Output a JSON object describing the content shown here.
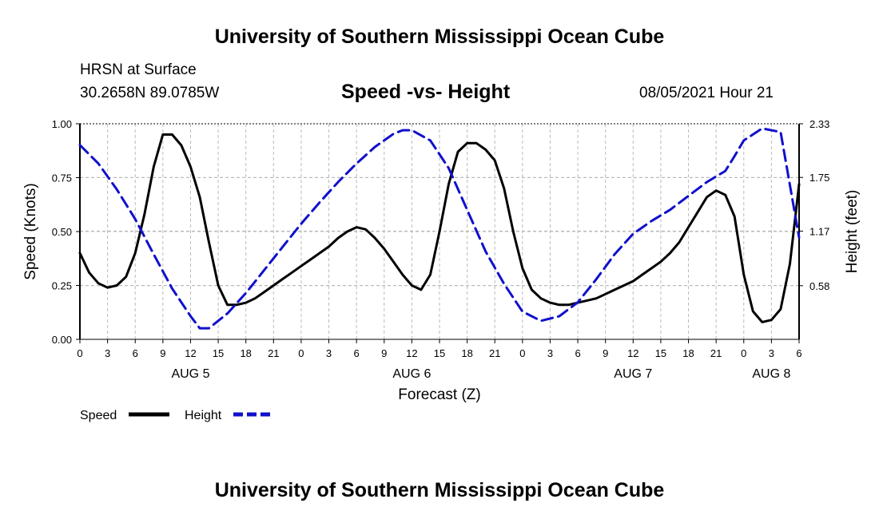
{
  "header": {
    "title": "University of Southern Mississippi Ocean Cube",
    "station": "HRSN at Surface",
    "coords": "30.2658N  89.0785W",
    "chart_title": "Speed -vs- Height",
    "datetime": "08/05/2021 Hour 21"
  },
  "footer": {
    "title": "University of Southern Mississippi Ocean Cube"
  },
  "colors": {
    "speed": "#000000",
    "height": "#1010cc",
    "grid": "#bbbbbb"
  },
  "chart_data": {
    "type": "line",
    "title": "Speed -vs- Height",
    "xlabel": "Forecast (Z)",
    "ylabel": "Speed (Knots)",
    "y2label": "Height (feet)",
    "xlim": [
      0,
      78
    ],
    "ylim": [
      0,
      1.0
    ],
    "y2lim": [
      0,
      2.33
    ],
    "x_tick_values": [
      0,
      3,
      6,
      9,
      12,
      15,
      18,
      21,
      24,
      27,
      30,
      33,
      36,
      39,
      42,
      45,
      48,
      51,
      54,
      57,
      60,
      63,
      66,
      69,
      72,
      75,
      78
    ],
    "x_tick_labels": [
      "0",
      "3",
      "6",
      "9",
      "12",
      "15",
      "18",
      "21",
      "0",
      "3",
      "6",
      "9",
      "12",
      "15",
      "18",
      "21",
      "0",
      "3",
      "6",
      "9",
      "12",
      "15",
      "18",
      "21",
      "0",
      "3",
      "6"
    ],
    "date_labels": [
      {
        "x": 12,
        "label": "AUG 5"
      },
      {
        "x": 36,
        "label": "AUG 6"
      },
      {
        "x": 60,
        "label": "AUG 7"
      },
      {
        "x": 75,
        "label": "AUG 8"
      }
    ],
    "y_ticks": [
      0.0,
      0.25,
      0.5,
      0.75,
      1.0
    ],
    "y_tick_labels": [
      "0.00",
      "0.25",
      "0.50",
      "0.75",
      "1.00"
    ],
    "y2_ticks": [
      0.58,
      1.17,
      1.75,
      2.33
    ],
    "y2_tick_labels": [
      "0.58",
      "1.17",
      "1.75",
      "2.33"
    ],
    "legend": [
      {
        "name": "Speed",
        "style": "solid"
      },
      {
        "name": "Height",
        "style": "dashed"
      }
    ],
    "series": [
      {
        "name": "Speed",
        "axis": "left",
        "x": [
          0,
          1,
          2,
          3,
          4,
          5,
          6,
          7,
          8,
          9,
          10,
          11,
          12,
          13,
          14,
          15,
          16,
          17,
          18,
          19,
          20,
          21,
          22,
          23,
          24,
          25,
          26,
          27,
          28,
          29,
          30,
          31,
          32,
          33,
          34,
          35,
          36,
          37,
          38,
          39,
          40,
          41,
          42,
          43,
          44,
          45,
          46,
          47,
          48,
          49,
          50,
          51,
          52,
          53,
          54,
          55,
          56,
          57,
          58,
          59,
          60,
          61,
          62,
          63,
          64,
          65,
          66,
          67,
          68,
          69,
          70,
          71,
          72,
          73,
          74,
          75,
          76,
          77,
          78
        ],
        "values": [
          0.4,
          0.31,
          0.26,
          0.24,
          0.25,
          0.29,
          0.4,
          0.58,
          0.8,
          0.95,
          0.95,
          0.9,
          0.8,
          0.66,
          0.45,
          0.25,
          0.16,
          0.16,
          0.17,
          0.19,
          0.22,
          0.25,
          0.28,
          0.31,
          0.34,
          0.37,
          0.4,
          0.43,
          0.47,
          0.5,
          0.52,
          0.51,
          0.47,
          0.42,
          0.36,
          0.3,
          0.25,
          0.23,
          0.3,
          0.5,
          0.72,
          0.87,
          0.91,
          0.91,
          0.88,
          0.83,
          0.7,
          0.5,
          0.33,
          0.23,
          0.19,
          0.17,
          0.16,
          0.16,
          0.17,
          0.18,
          0.19,
          0.21,
          0.23,
          0.25,
          0.27,
          0.3,
          0.33,
          0.36,
          0.4,
          0.45,
          0.52,
          0.59,
          0.66,
          0.69,
          0.67,
          0.57,
          0.3,
          0.13,
          0.08,
          0.09,
          0.14,
          0.35,
          0.72
        ]
      },
      {
        "name": "Height",
        "axis": "right",
        "x": [
          0,
          2,
          4,
          6,
          8,
          10,
          12,
          13,
          14,
          16,
          18,
          20,
          22,
          24,
          26,
          28,
          30,
          32,
          34,
          35,
          36,
          38,
          40,
          42,
          44,
          46,
          48,
          50,
          52,
          54,
          56,
          58,
          60,
          62,
          64,
          66,
          68,
          70,
          71,
          72,
          74,
          76,
          78
        ],
        "values": [
          2.1,
          1.9,
          1.62,
          1.3,
          0.92,
          0.55,
          0.25,
          0.12,
          0.12,
          0.28,
          0.5,
          0.75,
          1.0,
          1.25,
          1.48,
          1.7,
          1.9,
          2.08,
          2.22,
          2.26,
          2.26,
          2.15,
          1.85,
          1.4,
          0.95,
          0.6,
          0.3,
          0.2,
          0.25,
          0.4,
          0.65,
          0.92,
          1.14,
          1.28,
          1.4,
          1.55,
          1.7,
          1.82,
          1.98,
          2.15,
          2.28,
          2.24,
          1.1
        ]
      }
    ]
  }
}
